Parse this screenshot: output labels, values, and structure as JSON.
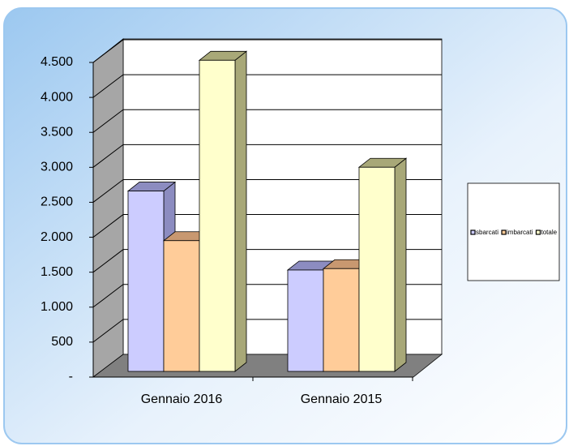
{
  "chart_data": {
    "type": "bar3d",
    "categories": [
      "Gennaio 2016",
      "Gennaio 2015"
    ],
    "series": [
      {
        "name": "sbarcati",
        "color": "#ccccff",
        "values": [
          2580,
          1450
        ]
      },
      {
        "name": "imbarcati",
        "color": "#ffcc99",
        "values": [
          1870,
          1470
        ]
      },
      {
        "name": "totale",
        "color": "#ffffcc",
        "values": [
          4450,
          2920
        ]
      }
    ],
    "ylim": [
      0,
      4500
    ],
    "yticks": [
      {
        "value": 0,
        "label": "-"
      },
      500,
      {
        "value": 1000,
        "label": "1.000"
      },
      {
        "value": 1500,
        "label": "1.500"
      },
      {
        "value": 2000,
        "label": "2.000"
      },
      {
        "value": 2500,
        "label": "2.500"
      },
      {
        "value": 3000,
        "label": "3.000"
      },
      {
        "value": 3500,
        "label": "3.500"
      },
      {
        "value": 4000,
        "label": "4.000"
      },
      {
        "value": 4500,
        "label": "4.500"
      }
    ],
    "grid": true,
    "legend": "right"
  }
}
